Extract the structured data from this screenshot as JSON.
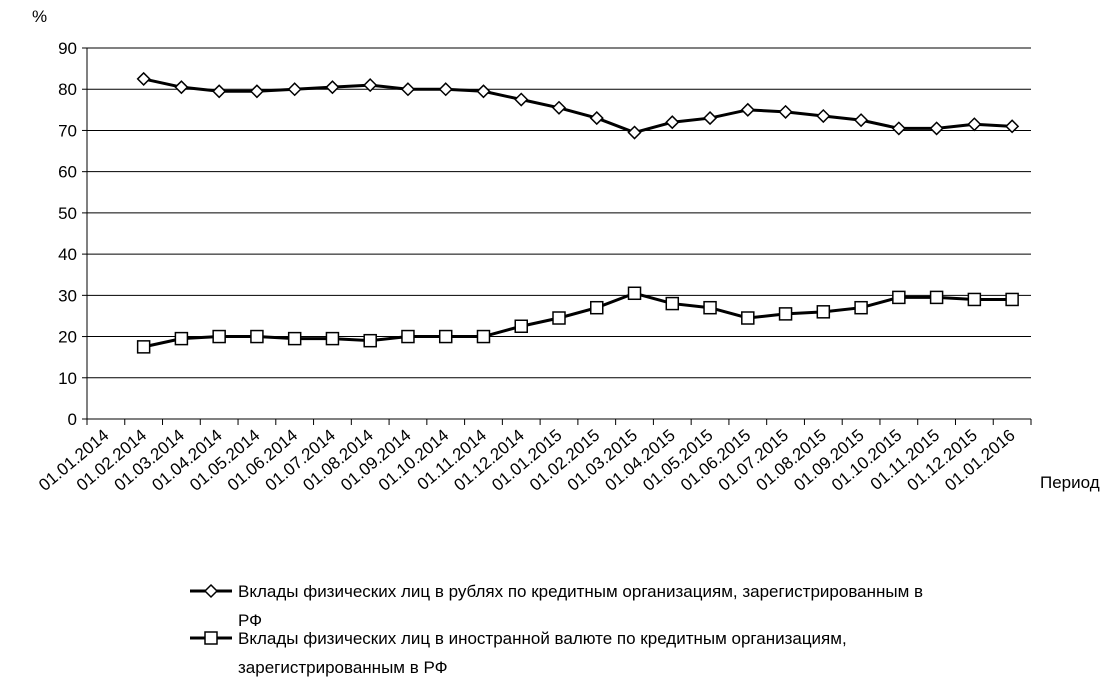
{
  "chart_data": {
    "type": "line",
    "ylabel": "%",
    "xlabel": "Период",
    "categories": [
      "01.01.2014",
      "01.02.2014",
      "01.03.2014",
      "01.04.2014",
      "01.05.2014",
      "01.06.2014",
      "01.07.2014",
      "01.08.2014",
      "01.09.2014",
      "01.10.2014",
      "01.11.2014",
      "01.12.2014",
      "01.01.2015",
      "01.02.2015",
      "01.03.2015",
      "01.04.2015",
      "01.05.2015",
      "01.06.2015",
      "01.07.2015",
      "01.08.2015",
      "01.09.2015",
      "01.10.2015",
      "01.11.2015",
      "01.12.2015",
      "01.01.2016"
    ],
    "series": [
      {
        "name": "Вклады физических лиц в рублях по кредитным организациям, зарегистрированным в РФ",
        "color": "#000000",
        "marker": "diamond",
        "values": [
          null,
          82.5,
          80.5,
          79.5,
          79.5,
          80,
          80.5,
          81,
          80,
          80,
          79.5,
          77.5,
          75.5,
          73,
          69.5,
          72,
          73,
          75,
          74.5,
          73.5,
          72.5,
          70.5,
          70.5,
          71.5,
          71
        ]
      },
      {
        "name": "Вклады физических лиц в иностранной валюте по кредитным организациям, зарегистрированным в РФ",
        "color": "#000000",
        "marker": "square",
        "values": [
          null,
          17.5,
          19.5,
          20,
          20,
          19.5,
          19.5,
          19,
          20,
          20,
          20,
          22.5,
          24.5,
          27,
          30.5,
          28,
          27,
          24.5,
          25.5,
          26,
          27,
          29.5,
          29.5,
          29,
          29
        ]
      }
    ],
    "ylim": [
      0,
      90
    ],
    "yticks": [
      0,
      10,
      20,
      30,
      40,
      50,
      60,
      70,
      80,
      90
    ],
    "grid": true
  }
}
